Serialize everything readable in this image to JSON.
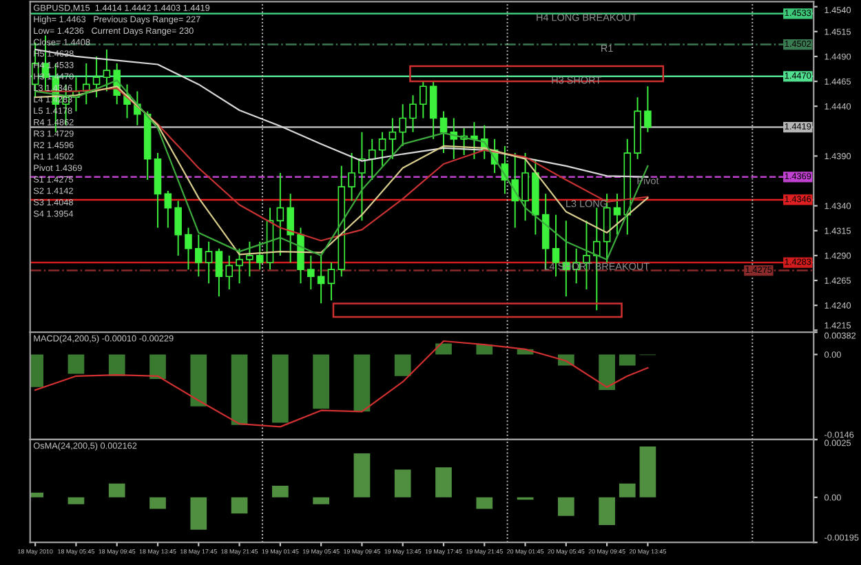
{
  "chart_data": [
    {
      "type": "candlestick",
      "title": "GBPUSD,M15  1.4414 1.4442 1.4403 1.4419",
      "color": "#3cf03c",
      "x": [
        "2010-05-18T01:45",
        "2010-05-18T02:45",
        "2010-05-18T03:45",
        "2010-05-18T04:45",
        "2010-05-18T05:45",
        "2010-05-18T06:45",
        "2010-05-18T07:45",
        "2010-05-18T08:45",
        "2010-05-18T09:45",
        "2010-05-18T10:45",
        "2010-05-18T11:45",
        "2010-05-18T12:45",
        "2010-05-18T13:45",
        "2010-05-18T14:45",
        "2010-05-18T15:45",
        "2010-05-18T16:45",
        "2010-05-18T17:45",
        "2010-05-18T18:45",
        "2010-05-18T19:45",
        "2010-05-18T20:45",
        "2010-05-18T21:45",
        "2010-05-18T22:45",
        "2010-05-18T23:45",
        "2010-05-19T00:45",
        "2010-05-19T01:45",
        "2010-05-19T02:45",
        "2010-05-19T03:45",
        "2010-05-19T04:45",
        "2010-05-19T05:45",
        "2010-05-19T06:45",
        "2010-05-19T07:45",
        "2010-05-19T08:45",
        "2010-05-19T09:45",
        "2010-05-19T10:45",
        "2010-05-19T11:45",
        "2010-05-19T12:45",
        "2010-05-19T13:45",
        "2010-05-19T14:45",
        "2010-05-19T15:45",
        "2010-05-19T16:45",
        "2010-05-19T17:45",
        "2010-05-19T18:45",
        "2010-05-19T19:45",
        "2010-05-19T20:45",
        "2010-05-19T21:45",
        "2010-05-19T22:45",
        "2010-05-19T23:45",
        "2010-05-20T00:45",
        "2010-05-20T01:45",
        "2010-05-20T02:45",
        "2010-05-20T03:45",
        "2010-05-20T04:45",
        "2010-05-20T05:45",
        "2010-05-20T06:45",
        "2010-05-20T07:45",
        "2010-05-20T08:45",
        "2010-05-20T09:45",
        "2010-05-20T10:45",
        "2010-05-20T11:45",
        "2010-05-20T12:45",
        "2010-05-20T13:45"
      ],
      "ohlc": [
        [
          1.4462,
          1.4504,
          1.4449,
          1.4483
        ],
        [
          1.4483,
          1.4511,
          1.4455,
          1.4469
        ],
        [
          1.4469,
          1.4483,
          1.4414,
          1.4442
        ],
        [
          1.4442,
          1.4462,
          1.4421,
          1.4449
        ],
        [
          1.4449,
          1.4469,
          1.4435,
          1.4455
        ],
        [
          1.4455,
          1.4483,
          1.4442,
          1.4462
        ],
        [
          1.4462,
          1.449,
          1.4449,
          1.4469
        ],
        [
          1.4469,
          1.4497,
          1.4455,
          1.4476
        ],
        [
          1.4476,
          1.4483,
          1.4442,
          1.4451
        ],
        [
          1.4451,
          1.4462,
          1.4428,
          1.4442
        ],
        [
          1.4442,
          1.4455,
          1.4421,
          1.4432
        ],
        [
          1.4432,
          1.4435,
          1.4366,
          1.4387
        ],
        [
          1.4387,
          1.4393,
          1.4318,
          1.4352
        ],
        [
          1.4352,
          1.4355,
          1.4318,
          1.4338
        ],
        [
          1.4338,
          1.4345,
          1.429,
          1.4311
        ],
        [
          1.4311,
          1.4318,
          1.4276,
          1.4297
        ],
        [
          1.4297,
          1.4311,
          1.4269,
          1.4283
        ],
        [
          1.4283,
          1.4304,
          1.4262,
          1.4294
        ],
        [
          1.4294,
          1.4297,
          1.4249,
          1.4269
        ],
        [
          1.4269,
          1.429,
          1.4256,
          1.428
        ],
        [
          1.428,
          1.4297,
          1.4262,
          1.4286
        ],
        [
          1.4286,
          1.4304,
          1.4269,
          1.429
        ],
        [
          1.429,
          1.4304,
          1.4276,
          1.4283
        ],
        [
          1.4283,
          1.4338,
          1.4276,
          1.4325
        ],
        [
          1.4325,
          1.4373,
          1.429,
          1.4338
        ],
        [
          1.4338,
          1.4352,
          1.4283,
          1.4311
        ],
        [
          1.4311,
          1.4318,
          1.4262,
          1.4276
        ],
        [
          1.4276,
          1.429,
          1.4256,
          1.4269
        ],
        [
          1.4269,
          1.429,
          1.4242,
          1.4262
        ],
        [
          1.4262,
          1.4283,
          1.4245,
          1.4276
        ],
        [
          1.4276,
          1.438,
          1.4269,
          1.4359
        ],
        [
          1.4359,
          1.4393,
          1.4345,
          1.4373
        ],
        [
          1.4373,
          1.4414,
          1.4325,
          1.4387
        ],
        [
          1.4387,
          1.4407,
          1.4366,
          1.4396
        ],
        [
          1.4396,
          1.4414,
          1.438,
          1.4407
        ],
        [
          1.4407,
          1.4428,
          1.4387,
          1.4414
        ],
        [
          1.4414,
          1.4442,
          1.44,
          1.4428
        ],
        [
          1.4428,
          1.4451,
          1.4414,
          1.4442
        ],
        [
          1.4442,
          1.4465,
          1.4428,
          1.446
        ],
        [
          1.446,
          1.4465,
          1.4407,
          1.4428
        ],
        [
          1.4428,
          1.4435,
          1.4393,
          1.4414
        ],
        [
          1.4414,
          1.4428,
          1.4387,
          1.4407
        ],
        [
          1.4407,
          1.4418,
          1.4391,
          1.441
        ],
        [
          1.441,
          1.4424,
          1.4387,
          1.4407
        ],
        [
          1.4407,
          1.4421,
          1.4387,
          1.4396
        ],
        [
          1.4396,
          1.4407,
          1.4373,
          1.4382
        ],
        [
          1.4382,
          1.44,
          1.4352,
          1.4366
        ],
        [
          1.4366,
          1.4393,
          1.4318,
          1.4345
        ],
        [
          1.4345,
          1.4393,
          1.4325,
          1.4373
        ],
        [
          1.4373,
          1.4387,
          1.4311,
          1.4331
        ],
        [
          1.4331,
          1.4352,
          1.4276,
          1.4297
        ],
        [
          1.4297,
          1.4331,
          1.4269,
          1.4283
        ],
        [
          1.4283,
          1.4325,
          1.4249,
          1.4276
        ],
        [
          1.4276,
          1.4297,
          1.4262,
          1.4283
        ],
        [
          1.4283,
          1.4325,
          1.4256,
          1.429
        ],
        [
          1.429,
          1.4338,
          1.4235,
          1.4304
        ],
        [
          1.4304,
          1.4352,
          1.4283,
          1.4338
        ],
        [
          1.4338,
          1.4352,
          1.4311,
          1.4331
        ],
        [
          1.4331,
          1.4407,
          1.4311,
          1.4393
        ],
        [
          1.4393,
          1.4449,
          1.4387,
          1.4435
        ],
        [
          1.4435,
          1.446,
          1.4414,
          1.4419
        ]
      ],
      "series": [
        {
          "type": "line",
          "color": "#d8d8d8",
          "x": [
            "2010-05-18T01:45",
            "2010-05-18T05:45",
            "2010-05-18T09:45",
            "2010-05-18T13:45",
            "2010-05-18T17:45",
            "2010-05-18T21:45",
            "2010-05-19T01:45",
            "2010-05-19T05:45",
            "2010-05-19T09:45",
            "2010-05-19T13:45",
            "2010-05-19T17:45",
            "2010-05-19T21:45",
            "2010-05-20T01:45",
            "2010-05-20T05:45",
            "2010-05-20T09:45",
            "2010-05-20T13:45"
          ],
          "values": [
            1.4497,
            1.449,
            1.4486,
            1.4482,
            1.4462,
            1.4436,
            1.442,
            1.4402,
            1.4385,
            1.4392,
            1.4398,
            1.4396,
            1.4388,
            1.438,
            1.437,
            1.4369
          ]
        },
        {
          "type": "line",
          "color": "#c83232",
          "x": [
            "2010-05-18T01:45",
            "2010-05-18T05:45",
            "2010-05-18T09:45",
            "2010-05-18T13:45",
            "2010-05-18T17:45",
            "2010-05-18T21:45",
            "2010-05-19T01:45",
            "2010-05-19T05:45",
            "2010-05-19T09:45",
            "2010-05-19T13:45",
            "2010-05-19T17:45",
            "2010-05-19T21:45",
            "2010-05-20T01:45",
            "2010-05-20T05:45",
            "2010-05-20T09:45",
            "2010-05-20T13:45"
          ],
          "values": [
            1.4455,
            1.4455,
            1.4458,
            1.4422,
            1.4378,
            1.4341,
            1.4318,
            1.4305,
            1.4316,
            1.4347,
            1.4382,
            1.4396,
            1.4389,
            1.4366,
            1.4344,
            1.4349
          ]
        },
        {
          "type": "line",
          "color": "#d8cc8c",
          "x": [
            "2010-05-18T01:45",
            "2010-05-18T05:45",
            "2010-05-18T09:45",
            "2010-05-18T13:45",
            "2010-05-18T17:45",
            "2010-05-18T21:45",
            "2010-05-19T01:45",
            "2010-05-19T05:45",
            "2010-05-19T09:45",
            "2010-05-19T13:45",
            "2010-05-19T17:45",
            "2010-05-19T21:45",
            "2010-05-20T01:45",
            "2010-05-20T05:45",
            "2010-05-20T09:45",
            "2010-05-20T13:45"
          ],
          "values": [
            1.4449,
            1.4451,
            1.446,
            1.4421,
            1.4348,
            1.4291,
            1.4294,
            1.4293,
            1.4331,
            1.4378,
            1.44,
            1.4398,
            1.4387,
            1.4334,
            1.4313,
            1.4348
          ]
        },
        {
          "type": "line",
          "color": "#3caa3c",
          "x": [
            "2010-05-18T01:45",
            "2010-05-18T05:45",
            "2010-05-18T09:45",
            "2010-05-18T13:45",
            "2010-05-18T17:45",
            "2010-05-18T21:45",
            "2010-05-19T01:45",
            "2010-05-19T05:45",
            "2010-05-19T09:45",
            "2010-05-19T13:45",
            "2010-05-19T17:45",
            "2010-05-19T21:45",
            "2010-05-20T01:45",
            "2010-05-20T05:45",
            "2010-05-20T09:45",
            "2010-05-20T13:45"
          ],
          "values": [
            1.4455,
            1.4449,
            1.4466,
            1.4418,
            1.4313,
            1.4294,
            1.4308,
            1.429,
            1.4356,
            1.4402,
            1.4413,
            1.4404,
            1.4338,
            1.4304,
            1.4286,
            1.438
          ]
        }
      ],
      "xlim": [
        "2010-05-18T01:15",
        "2010-05-21T06:00"
      ],
      "ylim": [
        1.4213,
        1.4545
      ],
      "yticks": [
        {
          "value": 1.454,
          "label": "1.4540"
        },
        1.4515,
        {
          "value": 1.449,
          "label": "1.4490"
        },
        1.4465,
        {
          "value": 1.444,
          "label": "1.4440"
        },
        {
          "value": 1.439,
          "label": "1.4390"
        },
        {
          "value": 1.434,
          "label": "1.4340"
        },
        1.4315,
        {
          "value": 1.429,
          "label": "1.4290"
        },
        1.4265,
        {
          "value": 1.424,
          "label": "1.4240"
        },
        1.4215
      ],
      "tick_labels": "y",
      "ref_lines": [
        {
          "axis": "y",
          "value": 1.4533,
          "label": "1.4533",
          "color": "#3cc878",
          "line_style": "solid"
        },
        {
          "axis": "y",
          "value": 1.4502,
          "label": "1.4502",
          "color": "#3a7a50",
          "line_style": "dashdot"
        },
        {
          "axis": "y",
          "value": 1.447,
          "label": "1.4470",
          "color": "#50e090",
          "line_style": "solid"
        },
        {
          "axis": "y",
          "value": 1.4419,
          "label": "1.4419",
          "color": "#b4b4b4",
          "line_style": "solid"
        },
        {
          "axis": "y",
          "value": 1.4369,
          "label": "1.4369",
          "color": "#c040d0",
          "line_style": "dashed"
        },
        {
          "axis": "y",
          "value": 1.4346,
          "label": "1.4346",
          "color": "#e02020",
          "line_style": "solid"
        },
        {
          "axis": "y",
          "value": 1.4283,
          "label": "1.4283",
          "color": "#d01c1c",
          "line_style": "solid"
        },
        {
          "axis": "y",
          "value": 1.4275,
          "label": "1.4275",
          "color": "#8a2a2a",
          "line_style": "dashdot"
        },
        {
          "axis": "x",
          "value": "2010-05-19T00:00",
          "color": "#c8c8c8",
          "line_style": "dotted"
        },
        {
          "axis": "x",
          "value": "2010-05-20T00:00",
          "color": "#c8c8c8",
          "line_style": "dotted"
        },
        {
          "axis": "x",
          "value": "2010-05-21T00:00",
          "color": "#c8c8c8",
          "line_style": "dotted"
        }
      ],
      "annotations": [
        "High= 1.4463   Previous Days Range= 227",
        "Low= 1.4236   Current Days Range= 230",
        "Close= 1.4408",
        "H5 1.4638",
        "H4 1.4533",
        "H3 1.4470",
        "L3 1.4346",
        "L4 1.4283",
        "L5 1.4178",
        "R4 1.4862",
        "R3 1.4729",
        "R2 1.4596",
        "R1 1.4502",
        "Pivot 1.4369",
        "S1 1.4275",
        "S2 1.4142",
        "S3 1.4048",
        "S4 1.3954",
        {
          "text": "H4 LONG BREAKOUT",
          "x": "2010-05-20T07:45",
          "y": 1.4533
        },
        {
          "text": "R1",
          "x": "2010-05-20T09:45",
          "y": 1.4502
        },
        {
          "text": "H3 SHORT",
          "x": "2010-05-20T06:45",
          "y": 1.447
        },
        {
          "text": "L3 LONG",
          "x": "2010-05-20T07:45",
          "y": 1.4346
        },
        {
          "text": "L4 SHORT BREAKOUT",
          "x": "2010-05-20T08:45",
          "y": 1.4283
        },
        {
          "text": "Pivot",
          "x": "2010-05-20T13:45",
          "y": 1.4369
        }
      ]
    },
    {
      "type": "bar",
      "title": "MACD(24,200,5) -0.00010 -0.00229",
      "x": [
        "2010-05-18T01:45",
        "2010-05-18T05:45",
        "2010-05-18T09:45",
        "2010-05-18T13:45",
        "2010-05-18T17:45",
        "2010-05-18T21:45",
        "2010-05-19T01:45",
        "2010-05-19T05:45",
        "2010-05-19T09:45",
        "2010-05-19T13:45",
        "2010-05-19T17:45",
        "2010-05-19T21:45",
        "2010-05-20T01:45",
        "2010-05-20T05:45",
        "2010-05-20T09:45",
        "2010-05-20T11:45",
        "2010-05-20T13:45"
      ],
      "series": [
        {
          "type": "bar",
          "color": "#3a7a30",
          "values": [
            -0.0056,
            -0.0033,
            -0.0037,
            -0.0042,
            -0.0089,
            -0.0121,
            -0.0117,
            -0.0093,
            -0.0098,
            -0.0037,
            0.0019,
            0.0017,
            0.0009,
            -0.0019,
            -0.0061,
            -0.0019,
            -0.0001
          ]
        },
        {
          "type": "line",
          "color": "#d03030",
          "values": [
            -0.0061,
            -0.0037,
            -0.0035,
            -0.0037,
            -0.0079,
            -0.0119,
            -0.0124,
            -0.0096,
            -0.0098,
            -0.0047,
            0.0023,
            0.0017,
            0.0009,
            -0.0011,
            -0.0056,
            -0.0037,
            -0.0023
          ]
        }
      ],
      "xlim": [
        "2010-05-18T01:15",
        "2010-05-21T06:00"
      ],
      "ylim": [
        -0.0146,
        0.00382
      ],
      "yticks": [
        0.00382,
        {
          "value": 0,
          "label": "0.00"
        },
        -0.0146
      ],
      "tick_labels": "y",
      "ref_lines": [
        {
          "axis": "x",
          "value": "2010-05-19T00:00",
          "color": "#c8c8c8",
          "line_style": "dotted"
        },
        {
          "axis": "x",
          "value": "2010-05-20T00:00",
          "color": "#c8c8c8",
          "line_style": "dotted"
        },
        {
          "axis": "x",
          "value": "2010-05-21T00:00",
          "color": "#c8c8c8",
          "line_style": "dotted"
        }
      ]
    },
    {
      "type": "bar",
      "title": "OsMA(24,200,5) 0.002162",
      "x": [
        "2010-05-18T01:45",
        "2010-05-18T05:45",
        "2010-05-18T09:45",
        "2010-05-18T13:45",
        "2010-05-18T17:45",
        "2010-05-18T21:45",
        "2010-05-19T01:45",
        "2010-05-19T05:45",
        "2010-05-19T09:45",
        "2010-05-19T13:45",
        "2010-05-19T17:45",
        "2010-05-19T21:45",
        "2010-05-20T01:45",
        "2010-05-20T05:45",
        "2010-05-20T09:45",
        "2010-05-20T11:45",
        "2010-05-20T13:45"
      ],
      "series": [
        {
          "type": "bar",
          "color": "#4f8f3f",
          "values": [
            0.0002,
            -0.0003,
            0.0006,
            -0.0005,
            -0.0014,
            -0.0007,
            0.0005,
            -0.0003,
            0.0019,
            0.0012,
            0.0013,
            -0.0005,
            -0.0001,
            -0.0008,
            -0.0012,
            0.0006,
            0.0022
          ]
        }
      ],
      "xlim": [
        "2010-05-18T01:15",
        "2010-05-21T06:00"
      ],
      "ylim": [
        -0.00195,
        0.0025
      ],
      "yticks": [
        0.0025,
        {
          "value": 0,
          "label": "0.00"
        },
        -0.00195
      ],
      "xticks": [
        {
          "value": "2010-05-18T01:45",
          "label": "18 May 2010"
        },
        {
          "value": "2010-05-18T05:45",
          "label": "18 May 05:45"
        },
        {
          "value": "2010-05-18T09:45",
          "label": "18 May 09:45"
        },
        {
          "value": "2010-05-18T13:45",
          "label": "18 May 13:45"
        },
        {
          "value": "2010-05-18T17:45",
          "label": "18 May 17:45"
        },
        {
          "value": "2010-05-18T21:45",
          "label": "18 May 21:45"
        },
        {
          "value": "2010-05-19T01:45",
          "label": "19 May 01:45"
        },
        {
          "value": "2010-05-19T05:45",
          "label": "19 May 05:45"
        },
        {
          "value": "2010-05-19T09:45",
          "label": "19 May 09:45"
        },
        {
          "value": "2010-05-19T13:45",
          "label": "19 May 13:45"
        },
        {
          "value": "2010-05-19T17:45",
          "label": "19 May 17:45"
        },
        {
          "value": "2010-05-19T21:45",
          "label": "19 May 21:45"
        },
        {
          "value": "2010-05-20T01:45",
          "label": "20 May 01:45"
        },
        {
          "value": "2010-05-20T05:45",
          "label": "20 May 05:45"
        },
        {
          "value": "2010-05-20T09:45",
          "label": "20 May 09:45"
        },
        {
          "value": "2010-05-20T13:45",
          "label": "20 May 13:45"
        }
      ],
      "ref_lines": [
        {
          "axis": "x",
          "value": "2010-05-19T00:00",
          "color": "#c8c8c8",
          "line_style": "dotted"
        },
        {
          "axis": "x",
          "value": "2010-05-20T00:00",
          "color": "#c8c8c8",
          "line_style": "dotted"
        },
        {
          "axis": "x",
          "value": "2010-05-21T00:00",
          "color": "#c8c8c8",
          "line_style": "dotted"
        }
      ]
    }
  ]
}
